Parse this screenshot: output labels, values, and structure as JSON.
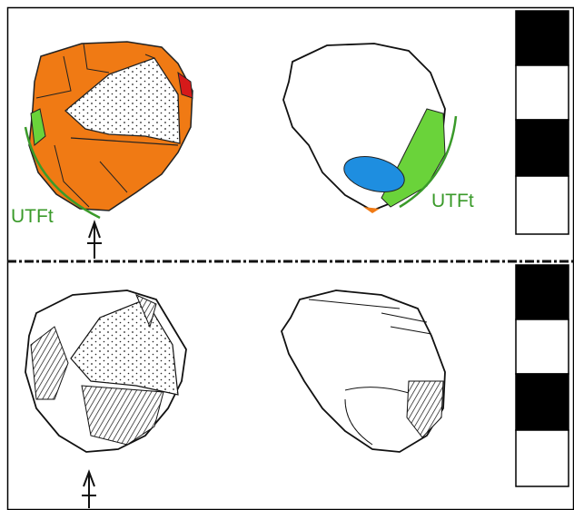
{
  "top_panel": {
    "left_label": "UTFt",
    "right_label": "UTFt"
  }
}
